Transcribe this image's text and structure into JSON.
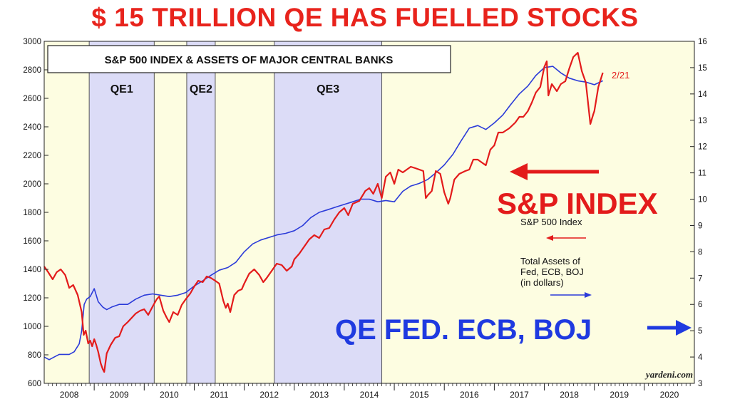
{
  "headline": "$ 15 TRILLION QE HAS FUELLED  STOCKS",
  "annotations": {
    "sp_index": "S&P INDEX",
    "qe_banks": "QE FED. ECB, BOJ"
  },
  "colors": {
    "sp_line": "#e31b1b",
    "assets_line": "#2b3bd9",
    "background_fill": "#fdfde1",
    "qe_band_fill": "#dcdcf7",
    "headline": "#e8231c",
    "qe_banks_text": "#1f3ae0"
  },
  "chart_data": {
    "type": "line",
    "title": "S&P 500 INDEX & ASSETS OF MAJOR CENTRAL BANKS",
    "x_domain": [
      2008.0,
      2021.0
    ],
    "xtick_labels": [
      "2008",
      "2009",
      "2010",
      "2011",
      "2012",
      "2013",
      "2014",
      "2015",
      "2016",
      "2017",
      "2018",
      "2019",
      "2020"
    ],
    "y_left": {
      "range": [
        600,
        3000
      ],
      "ticks": [
        600,
        800,
        1000,
        1200,
        1400,
        1600,
        1800,
        2000,
        2200,
        2400,
        2600,
        2800,
        3000
      ]
    },
    "y_right": {
      "range": [
        3,
        16
      ],
      "ticks": [
        3,
        4,
        5,
        6,
        7,
        8,
        9,
        10,
        11,
        12,
        13,
        14,
        15,
        16
      ]
    },
    "shaded_periods": [
      {
        "label": "QE1",
        "start": 2008.9,
        "end": 2010.2
      },
      {
        "label": "QE2",
        "start": 2010.85,
        "end": 2011.42
      },
      {
        "label": "QE3",
        "start": 2012.6,
        "end": 2014.75
      }
    ],
    "latest_label": "2/21",
    "source": "yardeni.com",
    "legend": {
      "sp_label": "S&P 500 Index",
      "assets_label": "Total Assets of\nFed, ECB, BOJ\n(in dollars)"
    },
    "series": [
      {
        "name": "S&P 500 Index",
        "axis": "left",
        "points": [
          [
            2008.0,
            1420
          ],
          [
            2008.08,
            1380
          ],
          [
            2008.17,
            1330
          ],
          [
            2008.25,
            1380
          ],
          [
            2008.33,
            1400
          ],
          [
            2008.42,
            1360
          ],
          [
            2008.5,
            1270
          ],
          [
            2008.58,
            1290
          ],
          [
            2008.67,
            1220
          ],
          [
            2008.75,
            1100
          ],
          [
            2008.79,
            940
          ],
          [
            2008.83,
            970
          ],
          [
            2008.88,
            880
          ],
          [
            2008.92,
            900
          ],
          [
            2008.96,
            860
          ],
          [
            2009.0,
            910
          ],
          [
            2009.04,
            870
          ],
          [
            2009.08,
            820
          ],
          [
            2009.13,
            740
          ],
          [
            2009.17,
            700
          ],
          [
            2009.2,
            680
          ],
          [
            2009.25,
            810
          ],
          [
            2009.33,
            870
          ],
          [
            2009.42,
            920
          ],
          [
            2009.5,
            930
          ],
          [
            2009.58,
            1000
          ],
          [
            2009.67,
            1030
          ],
          [
            2009.75,
            1060
          ],
          [
            2009.83,
            1090
          ],
          [
            2009.92,
            1110
          ],
          [
            2010.0,
            1120
          ],
          [
            2010.08,
            1080
          ],
          [
            2010.17,
            1140
          ],
          [
            2010.25,
            1190
          ],
          [
            2010.3,
            1210
          ],
          [
            2010.38,
            1110
          ],
          [
            2010.45,
            1060
          ],
          [
            2010.5,
            1030
          ],
          [
            2010.58,
            1100
          ],
          [
            2010.67,
            1080
          ],
          [
            2010.75,
            1150
          ],
          [
            2010.83,
            1190
          ],
          [
            2010.92,
            1230
          ],
          [
            2011.0,
            1280
          ],
          [
            2011.08,
            1320
          ],
          [
            2011.17,
            1310
          ],
          [
            2011.25,
            1350
          ],
          [
            2011.33,
            1340
          ],
          [
            2011.42,
            1320
          ],
          [
            2011.5,
            1300
          ],
          [
            2011.58,
            1180
          ],
          [
            2011.63,
            1130
          ],
          [
            2011.67,
            1160
          ],
          [
            2011.72,
            1100
          ],
          [
            2011.8,
            1220
          ],
          [
            2011.88,
            1250
          ],
          [
            2011.95,
            1260
          ],
          [
            2012.0,
            1300
          ],
          [
            2012.1,
            1370
          ],
          [
            2012.2,
            1400
          ],
          [
            2012.3,
            1360
          ],
          [
            2012.38,
            1310
          ],
          [
            2012.45,
            1340
          ],
          [
            2012.55,
            1390
          ],
          [
            2012.65,
            1440
          ],
          [
            2012.75,
            1430
          ],
          [
            2012.85,
            1390
          ],
          [
            2012.95,
            1420
          ],
          [
            2013.0,
            1470
          ],
          [
            2013.1,
            1510
          ],
          [
            2013.2,
            1560
          ],
          [
            2013.3,
            1610
          ],
          [
            2013.4,
            1640
          ],
          [
            2013.5,
            1620
          ],
          [
            2013.6,
            1680
          ],
          [
            2013.7,
            1690
          ],
          [
            2013.8,
            1750
          ],
          [
            2013.9,
            1800
          ],
          [
            2014.0,
            1830
          ],
          [
            2014.08,
            1780
          ],
          [
            2014.17,
            1860
          ],
          [
            2014.3,
            1880
          ],
          [
            2014.42,
            1950
          ],
          [
            2014.5,
            1970
          ],
          [
            2014.58,
            1930
          ],
          [
            2014.67,
            2000
          ],
          [
            2014.75,
            1900
          ],
          [
            2014.83,
            2050
          ],
          [
            2014.92,
            2080
          ],
          [
            2015.0,
            2000
          ],
          [
            2015.08,
            2100
          ],
          [
            2015.17,
            2080
          ],
          [
            2015.25,
            2100
          ],
          [
            2015.33,
            2120
          ],
          [
            2015.42,
            2110
          ],
          [
            2015.5,
            2100
          ],
          [
            2015.58,
            2090
          ],
          [
            2015.63,
            1900
          ],
          [
            2015.67,
            1920
          ],
          [
            2015.75,
            1950
          ],
          [
            2015.83,
            2090
          ],
          [
            2015.92,
            2070
          ],
          [
            2016.0,
            1940
          ],
          [
            2016.08,
            1860
          ],
          [
            2016.12,
            1900
          ],
          [
            2016.2,
            2030
          ],
          [
            2016.3,
            2070
          ],
          [
            2016.42,
            2090
          ],
          [
            2016.5,
            2100
          ],
          [
            2016.58,
            2170
          ],
          [
            2016.67,
            2170
          ],
          [
            2016.75,
            2150
          ],
          [
            2016.83,
            2130
          ],
          [
            2016.92,
            2240
          ],
          [
            2017.0,
            2270
          ],
          [
            2017.08,
            2360
          ],
          [
            2017.17,
            2360
          ],
          [
            2017.3,
            2390
          ],
          [
            2017.42,
            2430
          ],
          [
            2017.5,
            2470
          ],
          [
            2017.58,
            2470
          ],
          [
            2017.67,
            2510
          ],
          [
            2017.75,
            2570
          ],
          [
            2017.83,
            2640
          ],
          [
            2017.92,
            2680
          ],
          [
            2018.0,
            2820
          ],
          [
            2018.05,
            2860
          ],
          [
            2018.08,
            2620
          ],
          [
            2018.15,
            2700
          ],
          [
            2018.25,
            2650
          ],
          [
            2018.33,
            2700
          ],
          [
            2018.42,
            2720
          ],
          [
            2018.5,
            2810
          ],
          [
            2018.58,
            2890
          ],
          [
            2018.67,
            2920
          ],
          [
            2018.75,
            2790
          ],
          [
            2018.83,
            2710
          ],
          [
            2018.92,
            2420
          ],
          [
            2018.98,
            2490
          ],
          [
            2019.0,
            2510
          ],
          [
            2019.08,
            2680
          ],
          [
            2019.17,
            2780
          ]
        ]
      },
      {
        "name": "Total Assets of Fed, ECB, BOJ",
        "axis": "right",
        "points": [
          [
            2008.0,
            4.0
          ],
          [
            2008.1,
            3.9
          ],
          [
            2008.2,
            4.0
          ],
          [
            2008.3,
            4.1
          ],
          [
            2008.4,
            4.1
          ],
          [
            2008.5,
            4.1
          ],
          [
            2008.6,
            4.2
          ],
          [
            2008.7,
            4.5
          ],
          [
            2008.75,
            5.0
          ],
          [
            2008.8,
            6.0
          ],
          [
            2008.85,
            6.2
          ],
          [
            2008.92,
            6.3
          ],
          [
            2009.0,
            6.6
          ],
          [
            2009.08,
            6.1
          ],
          [
            2009.17,
            5.9
          ],
          [
            2009.25,
            5.8
          ],
          [
            2009.35,
            5.9
          ],
          [
            2009.5,
            6.0
          ],
          [
            2009.67,
            6.0
          ],
          [
            2009.83,
            6.2
          ],
          [
            2010.0,
            6.35
          ],
          [
            2010.17,
            6.4
          ],
          [
            2010.33,
            6.35
          ],
          [
            2010.5,
            6.3
          ],
          [
            2010.67,
            6.35
          ],
          [
            2010.83,
            6.45
          ],
          [
            2011.0,
            6.7
          ],
          [
            2011.17,
            6.9
          ],
          [
            2011.33,
            7.1
          ],
          [
            2011.5,
            7.3
          ],
          [
            2011.67,
            7.4
          ],
          [
            2011.83,
            7.6
          ],
          [
            2012.0,
            8.0
          ],
          [
            2012.17,
            8.3
          ],
          [
            2012.33,
            8.45
          ],
          [
            2012.5,
            8.55
          ],
          [
            2012.67,
            8.65
          ],
          [
            2012.83,
            8.7
          ],
          [
            2013.0,
            8.8
          ],
          [
            2013.17,
            9.0
          ],
          [
            2013.33,
            9.3
          ],
          [
            2013.5,
            9.5
          ],
          [
            2013.67,
            9.6
          ],
          [
            2013.83,
            9.7
          ],
          [
            2014.0,
            9.8
          ],
          [
            2014.17,
            9.9
          ],
          [
            2014.33,
            10.0
          ],
          [
            2014.5,
            10.0
          ],
          [
            2014.67,
            9.9
          ],
          [
            2014.83,
            9.95
          ],
          [
            2015.0,
            9.9
          ],
          [
            2015.17,
            10.3
          ],
          [
            2015.33,
            10.5
          ],
          [
            2015.5,
            10.6
          ],
          [
            2015.67,
            10.75
          ],
          [
            2015.83,
            11.0
          ],
          [
            2016.0,
            11.3
          ],
          [
            2016.17,
            11.7
          ],
          [
            2016.33,
            12.2
          ],
          [
            2016.5,
            12.7
          ],
          [
            2016.67,
            12.8
          ],
          [
            2016.83,
            12.65
          ],
          [
            2017.0,
            12.9
          ],
          [
            2017.17,
            13.2
          ],
          [
            2017.33,
            13.6
          ],
          [
            2017.5,
            14.0
          ],
          [
            2017.67,
            14.3
          ],
          [
            2017.83,
            14.7
          ],
          [
            2018.0,
            15.0
          ],
          [
            2018.17,
            15.05
          ],
          [
            2018.33,
            14.8
          ],
          [
            2018.5,
            14.6
          ],
          [
            2018.67,
            14.5
          ],
          [
            2018.83,
            14.45
          ],
          [
            2019.0,
            14.35
          ],
          [
            2019.17,
            14.5
          ]
        ]
      }
    ]
  }
}
